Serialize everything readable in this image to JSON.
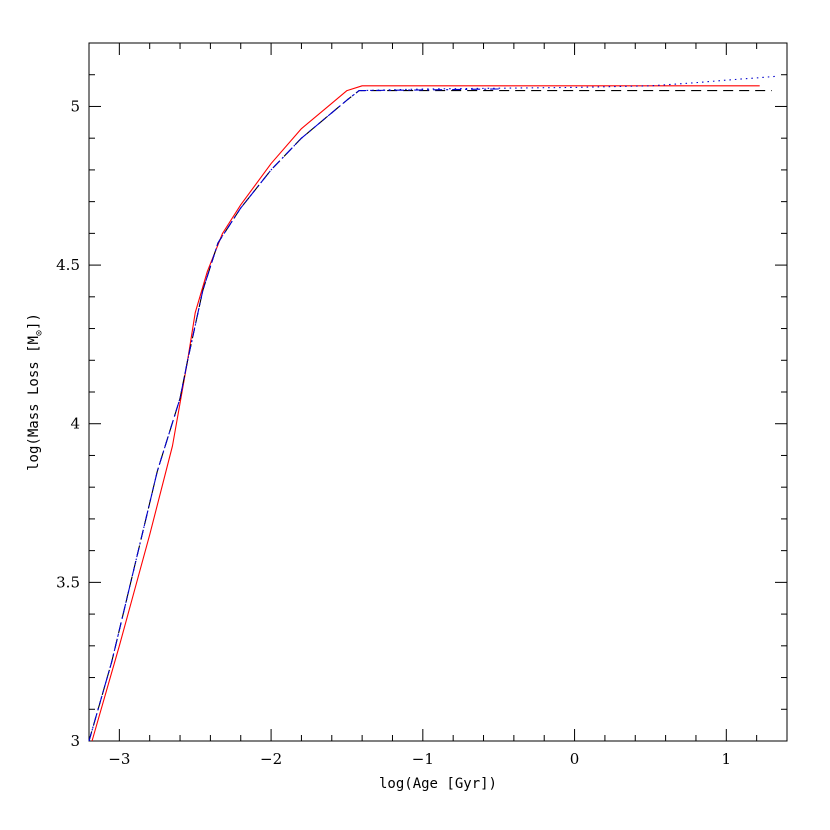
{
  "chart_data": {
    "type": "line",
    "title": "",
    "xlabel": "log(Age [Gyr])",
    "ylabel_prefix": "log(Mass Loss [M",
    "ylabel_sub": "⊙",
    "ylabel_suffix": "])",
    "xlim": [
      -3.2,
      1.4
    ],
    "ylim": [
      3,
      5.2
    ],
    "x_major_ticks": [
      -3,
      -2,
      -1,
      0,
      1
    ],
    "x_tick_labels": [
      "−3",
      "−2",
      "−1",
      "0",
      "1"
    ],
    "x_minor_step": 0.2,
    "y_major_ticks": [
      3,
      3.5,
      4,
      4.5,
      5
    ],
    "y_tick_labels": [
      "3",
      "3.5",
      "4",
      "4.5",
      "5"
    ],
    "y_minor_step": 0.1,
    "grid": false,
    "series": [
      {
        "color": "#ff0000",
        "style": "solid",
        "points": [
          [
            -3.18,
            3.0
          ],
          [
            -3.0,
            3.3
          ],
          [
            -2.8,
            3.65
          ],
          [
            -2.65,
            3.93
          ],
          [
            -2.55,
            4.2
          ],
          [
            -2.5,
            4.35
          ],
          [
            -2.42,
            4.48
          ],
          [
            -2.32,
            4.6
          ],
          [
            -2.2,
            4.69
          ],
          [
            -2.0,
            4.82
          ],
          [
            -1.8,
            4.93
          ],
          [
            -1.6,
            5.01
          ],
          [
            -1.5,
            5.05
          ],
          [
            -1.4,
            5.065
          ],
          [
            -1.0,
            5.065
          ],
          [
            0.0,
            5.065
          ],
          [
            0.5,
            5.065
          ],
          [
            1.22,
            5.065
          ]
        ]
      },
      {
        "color": "#000000",
        "style": "dashed",
        "points": [
          [
            -3.2,
            3.0
          ],
          [
            -3.05,
            3.25
          ],
          [
            -2.9,
            3.55
          ],
          [
            -2.75,
            3.85
          ],
          [
            -2.6,
            4.08
          ],
          [
            -2.55,
            4.2
          ],
          [
            -2.45,
            4.42
          ],
          [
            -2.35,
            4.57
          ],
          [
            -2.2,
            4.68
          ],
          [
            -2.0,
            4.8
          ],
          [
            -1.8,
            4.9
          ],
          [
            -1.6,
            4.98
          ],
          [
            -1.5,
            5.02
          ],
          [
            -1.42,
            5.05
          ],
          [
            -1.0,
            5.05
          ],
          [
            0.0,
            5.05
          ],
          [
            1.3,
            5.05
          ]
        ]
      },
      {
        "color": "#0000cc",
        "style": "dotted",
        "points": [
          [
            -3.2,
            3.0
          ],
          [
            -3.05,
            3.25
          ],
          [
            -2.9,
            3.55
          ],
          [
            -2.75,
            3.85
          ],
          [
            -2.6,
            4.08
          ],
          [
            -2.55,
            4.2
          ],
          [
            -2.45,
            4.42
          ],
          [
            -2.35,
            4.57
          ],
          [
            -2.2,
            4.68
          ],
          [
            -2.0,
            4.8
          ],
          [
            -1.8,
            4.9
          ],
          [
            -1.6,
            4.98
          ],
          [
            -1.5,
            5.02
          ],
          [
            -1.42,
            5.05
          ],
          [
            -1.0,
            5.055
          ],
          [
            0.0,
            5.06
          ],
          [
            0.5,
            5.065
          ],
          [
            0.8,
            5.075
          ],
          [
            1.0,
            5.083
          ],
          [
            1.2,
            5.09
          ],
          [
            1.33,
            5.095
          ]
        ]
      },
      {
        "color": "#0000cc",
        "style": "dashdot",
        "points": [
          [
            -3.2,
            3.0
          ],
          [
            -3.05,
            3.25
          ],
          [
            -2.9,
            3.55
          ],
          [
            -2.75,
            3.85
          ],
          [
            -2.6,
            4.08
          ],
          [
            -2.55,
            4.2
          ],
          [
            -2.45,
            4.42
          ],
          [
            -2.35,
            4.57
          ],
          [
            -2.2,
            4.68
          ],
          [
            -2.0,
            4.8
          ],
          [
            -1.8,
            4.9
          ],
          [
            -1.6,
            4.98
          ],
          [
            -1.5,
            5.02
          ],
          [
            -1.42,
            5.05
          ],
          [
            -1.0,
            5.052
          ],
          [
            -0.5,
            5.055
          ]
        ]
      }
    ]
  }
}
